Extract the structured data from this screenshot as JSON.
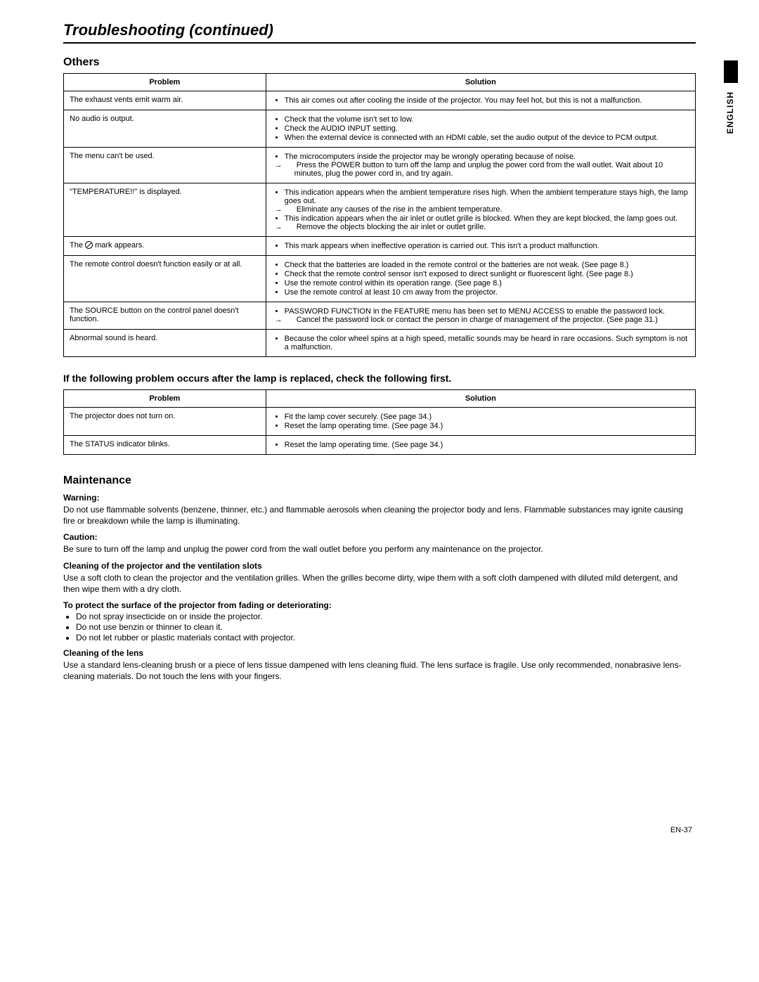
{
  "page_title": "Troubleshooting (continued)",
  "side_label": "ENGLISH",
  "page_number": "EN-37",
  "others": {
    "heading": "Others",
    "columns": [
      "Problem",
      "Solution"
    ],
    "rows": [
      {
        "problem": "The exhaust vents emit warm air.",
        "bullets": [
          "This air comes out after cooling the inside of the projector. You may feel hot, but this is not a malfunction."
        ]
      },
      {
        "problem": "No audio is output.",
        "bullets": [
          "Check that the volume isn't set to low.",
          "Check the AUDIO INPUT setting.",
          "When the external device is connected with an HDMI cable, set the audio output of the device to PCM output."
        ]
      },
      {
        "problem": "The menu can't be used.",
        "bullets_complex": [
          {
            "text": "The microcomputers inside the projector may be wrongly operating because of noise.",
            "arrows": [
              "Press the POWER button to turn off the lamp and unplug the power cord from the wall outlet. Wait about 10 minutes, plug the power cord in, and try again."
            ]
          }
        ]
      },
      {
        "problem": "\"TEMPERATURE!!\" is displayed.",
        "bullets_complex": [
          {
            "text": "This indication appears when the ambient temperature rises high. When the ambient temperature stays high, the lamp goes out.",
            "arrows": [
              "Eliminate any causes of the rise in the ambient temperature."
            ]
          },
          {
            "text": "This indication appears when the air inlet or outlet grille is blocked. When they are kept blocked, the lamp goes out.",
            "arrows": [
              "Remove the objects blocking the air inlet or outlet grille."
            ]
          }
        ]
      },
      {
        "problem_html": "The <span class='prohibit'></span> mark appears.",
        "bullets": [
          "This mark appears when ineffective operation is carried out. This isn't a product malfunction."
        ]
      },
      {
        "problem": "The remote control doesn't function easily or at all.",
        "bullets": [
          "Check that the batteries are loaded in the remote control or the batteries are not weak. (See page 8.)",
          "Check that the remote control sensor isn't exposed to direct sunlight or fluorescent light. (See page 8.)",
          "Use the remote control within its operation range. (See page 8.)",
          "Use the remote control at least 10 cm away from the projector."
        ]
      },
      {
        "problem": "The SOURCE button on the control panel doesn't function.",
        "bullets_complex": [
          {
            "text": "PASSWORD FUNCTION in the FEATURE menu has been set to MENU ACCESS to enable the password lock.",
            "arrows": [
              "Cancel the password lock or contact the person in charge of management of the projector. (See page 31.)"
            ]
          }
        ]
      },
      {
        "problem": "Abnormal sound is heard.",
        "bullets": [
          "Because the color wheel spins at a high speed, metallic sounds may be heard in rare occasions. Such symptom is not a malfunction."
        ]
      }
    ]
  },
  "lamp_replaced": {
    "heading": "If the following problem occurs after the lamp is replaced, check the following first.",
    "columns": [
      "Problem",
      "Solution"
    ],
    "rows": [
      {
        "problem": "The projector does not turn on.",
        "bullets": [
          "Fit the lamp cover securely. (See page 34.)",
          "Reset the lamp operating time. (See page 34.)"
        ]
      },
      {
        "problem": "The STATUS indicator blinks.",
        "bullets": [
          "Reset the lamp operating time. (See page 34.)"
        ]
      }
    ]
  },
  "maintenance": {
    "heading": "Maintenance",
    "warning_label": "Warning:",
    "warning_text": "Do not use flammable solvents (benzene, thinner, etc.) and flammable aerosols when cleaning the projector body and lens. Flammable substances may ignite causing fire or breakdown while the lamp is illuminating.",
    "caution_label": "Caution:",
    "caution_text": "Be sure to turn off the lamp and unplug the power cord from the wall outlet before you perform any maintenance on the projector.",
    "clean_proj_label": "Cleaning of the projector and the ventilation slots",
    "clean_proj_text": "Use a soft cloth to clean the projector and the ventilation grilles. When the grilles become dirty, wipe them with a soft cloth dampened with diluted mild detergent, and then wipe them with a dry cloth.",
    "protect_label": "To protect the surface of the projector from fading or deteriorating:",
    "protect_items": [
      "Do not spray insecticide on or inside the projector.",
      "Do not use benzin or thinner to clean it.",
      "Do not let rubber or plastic materials contact with projector."
    ],
    "clean_lens_label": "Cleaning of the lens",
    "clean_lens_text": "Use a standard lens-cleaning brush or a piece of lens tissue dampened with lens cleaning fluid. The lens surface is fragile. Use only recommended, nonabrasive lens-cleaning materials. Do not touch the lens with your fingers."
  }
}
